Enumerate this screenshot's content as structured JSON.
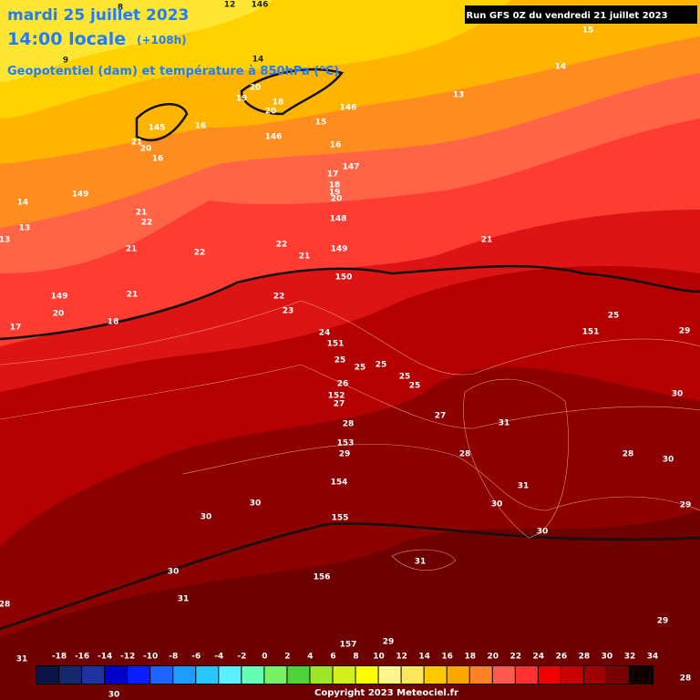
{
  "header": {
    "date": "mardi 25 juillet 2023",
    "time": "14:00 locale",
    "lead": "(+108h)",
    "field": "Geopotentiel (dam) et température à 850hPa (°C)",
    "run": "Run GFS 0Z du vendredi 21 juillet 2023"
  },
  "colorbar": {
    "ticks": [
      -18,
      -16,
      -14,
      -12,
      -10,
      -8,
      -6,
      -4,
      -2,
      0,
      2,
      4,
      6,
      8,
      10,
      12,
      14,
      16,
      18,
      20,
      22,
      24,
      26,
      28,
      30,
      32,
      34
    ],
    "colors": [
      "#0a1446",
      "#14286e",
      "#1e32a0",
      "#0000c8",
      "#0a1eff",
      "#1e64ff",
      "#1e9bff",
      "#28c8ff",
      "#5af0ff",
      "#64ffb4",
      "#78f064",
      "#50d23c",
      "#a0e628",
      "#d2f01e",
      "#ffff00",
      "#fff58c",
      "#ffe65a",
      "#ffc800",
      "#ffa500",
      "#ff8228",
      "#ff5a50",
      "#ff3232",
      "#f00000",
      "#c80000",
      "#a00000",
      "#780000",
      "#100000"
    ]
  },
  "copyright": "Copyright 2023 Meteociel.fr",
  "map_labels": [
    12,
    146,
    8,
    9,
    14,
    20,
    19,
    18,
    20,
    146,
    15,
    15,
    14,
    13,
    145,
    16,
    21,
    20,
    16,
    146,
    16,
    147,
    17,
    18,
    19,
    20,
    149,
    14,
    13,
    13,
    21,
    22,
    148,
    21,
    22,
    22,
    21,
    149,
    21,
    150,
    149,
    20,
    21,
    22,
    23,
    17,
    18,
    24,
    151,
    25,
    151,
    29,
    25,
    25,
    25,
    25,
    25,
    26,
    152,
    27,
    27,
    31,
    30,
    28,
    153,
    29,
    28,
    28,
    30,
    154,
    31,
    30,
    30,
    29,
    30,
    155,
    30,
    30,
    31,
    156,
    31,
    28,
    29,
    29,
    157,
    31,
    30,
    28
  ]
}
